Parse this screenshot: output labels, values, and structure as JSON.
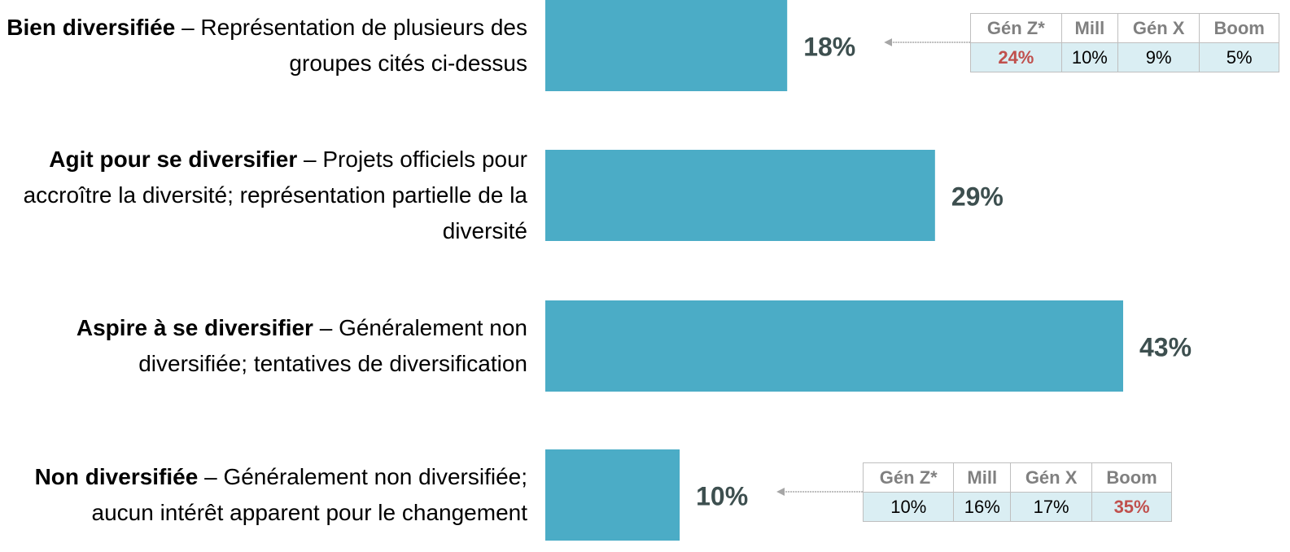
{
  "chart_data": {
    "type": "bar",
    "orientation": "horizontal",
    "color": "#4bacc6",
    "categories": [
      {
        "title": "Bien diversifiée",
        "description": "– Représentation de plusieurs des groupes cités ci-dessus"
      },
      {
        "title": "Agit pour se diversifier",
        "description": "– Projets officiels pour accroître la diversité; représentation partielle de la diversité"
      },
      {
        "title": "Aspire à se diversifier",
        "description": "– Généralement non diversifiée;  tentatives de diversification"
      },
      {
        "title": "Non diversifiée",
        "description": "– Généralement non diversifiée; aucun intérêt apparent pour le changement"
      }
    ],
    "values": [
      18,
      29,
      43,
      10
    ],
    "value_labels": [
      "18%",
      "29%",
      "43%",
      "10%"
    ],
    "tables": [
      {
        "headers": [
          "Gén Z*",
          "Mill",
          "Gén X",
          "Boom"
        ],
        "cells": [
          "24%",
          "10%",
          "9%",
          "5%"
        ],
        "highlight": 0
      },
      null,
      null,
      {
        "headers": [
          "Gén Z*",
          "Mill",
          "Gén X",
          "Boom"
        ],
        "cells": [
          "10%",
          "16%",
          "17%",
          "35%"
        ],
        "highlight": 3
      }
    ],
    "highlight_color": "#c0504d"
  }
}
